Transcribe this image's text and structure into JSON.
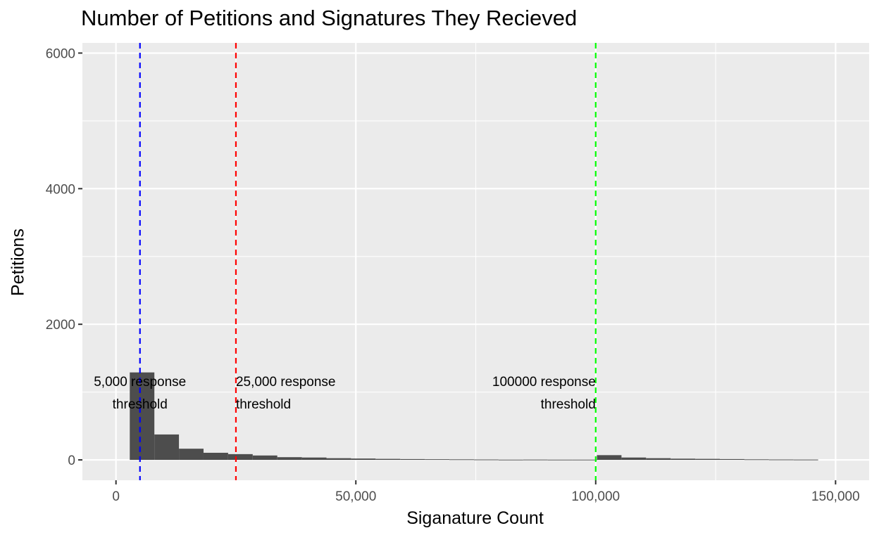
{
  "chart_data": {
    "type": "bar",
    "title": "Number of Petitions and Signatures They Recieved",
    "xlabel": "Siganature Count",
    "ylabel": "Petitions",
    "xlim": [
      -7000,
      157000
    ],
    "ylim": [
      -300,
      6150
    ],
    "x_ticks": [
      {
        "value": 0,
        "label": "0"
      },
      {
        "value": 50000,
        "label": "50,000"
      },
      {
        "value": 100000,
        "label": "100,000"
      },
      {
        "value": 150000,
        "label": "150,000"
      }
    ],
    "y_ticks": [
      {
        "value": 0,
        "label": "0"
      },
      {
        "value": 2000,
        "label": "2000"
      },
      {
        "value": 4000,
        "label": "4000"
      },
      {
        "value": 6000,
        "label": "6000"
      }
    ],
    "grid": true,
    "bin_width": 5125,
    "bins": [
      {
        "x0": 2875,
        "count": 1290
      },
      {
        "x0": 8000,
        "count": 375
      },
      {
        "x0": 13125,
        "count": 165
      },
      {
        "x0": 18250,
        "count": 105
      },
      {
        "x0": 23375,
        "count": 85
      },
      {
        "x0": 28500,
        "count": 65
      },
      {
        "x0": 33625,
        "count": 40
      },
      {
        "x0": 38750,
        "count": 35
      },
      {
        "x0": 43875,
        "count": 25
      },
      {
        "x0": 49000,
        "count": 20
      },
      {
        "x0": 54125,
        "count": 15
      },
      {
        "x0": 59250,
        "count": 12
      },
      {
        "x0": 64375,
        "count": 10
      },
      {
        "x0": 69500,
        "count": 8
      },
      {
        "x0": 74625,
        "count": 6
      },
      {
        "x0": 79750,
        "count": 4
      },
      {
        "x0": 84875,
        "count": 5
      },
      {
        "x0": 90000,
        "count": 4
      },
      {
        "x0": 95125,
        "count": 4
      },
      {
        "x0": 100250,
        "count": 70
      },
      {
        "x0": 105375,
        "count": 35
      },
      {
        "x0": 110500,
        "count": 25
      },
      {
        "x0": 115625,
        "count": 18
      },
      {
        "x0": 120750,
        "count": 15
      },
      {
        "x0": 125875,
        "count": 12
      },
      {
        "x0": 131000,
        "count": 8
      },
      {
        "x0": 136125,
        "count": 6
      },
      {
        "x0": 141250,
        "count": 5
      }
    ],
    "reference_lines": [
      {
        "x": 5000,
        "color": "#0000ff",
        "label_lines": [
          "5,000 response",
          "threshold"
        ],
        "label_anchor": "middle"
      },
      {
        "x": 25000,
        "color": "#ff0000",
        "label_lines": [
          "25,000 response",
          "threshold"
        ],
        "label_anchor": "start"
      },
      {
        "x": 100000,
        "color": "#00ff00",
        "label_lines": [
          "100000 response",
          "threshold"
        ],
        "label_anchor": "end"
      }
    ],
    "annotation_y": [
      1160,
      830
    ],
    "colors": {
      "panel": "#ebebeb",
      "grid": "#ffffff",
      "bar": "#4d4d4d",
      "tick_text": "#4d4d4d"
    }
  }
}
